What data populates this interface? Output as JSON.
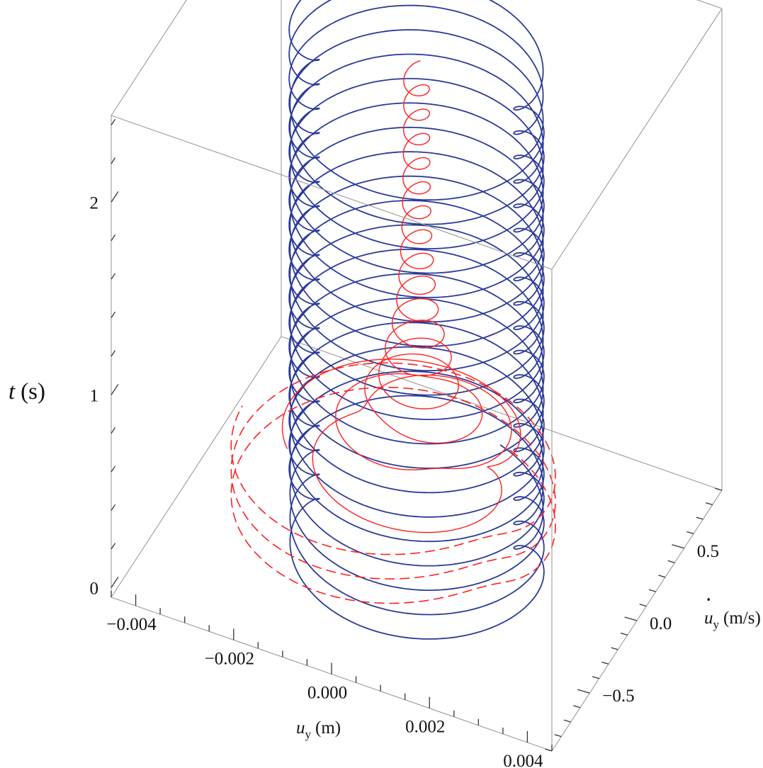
{
  "chart_data": {
    "type": "line",
    "projection": "3d",
    "title": "",
    "axes": {
      "x": {
        "label_main": "u",
        "label_sub": "y",
        "label_unit": "(m)",
        "range": [
          -0.0045,
          0.0045
        ],
        "ticks": [
          -0.004,
          -0.002,
          0.0,
          0.002,
          0.004
        ],
        "tick_labels": [
          "−0.004",
          "−0.002",
          "0.000",
          "0.002",
          "0.004"
        ]
      },
      "y": {
        "label_main": "u",
        "label_sub": "y",
        "label_dot": "˙",
        "label_unit": "(m/s)",
        "range": [
          -0.9,
          0.9
        ],
        "ticks": [
          -0.5,
          0.0,
          0.5
        ],
        "tick_labels": [
          "−0.5",
          "0.0",
          "0.5"
        ]
      },
      "z": {
        "label_main": "t",
        "label_unit": "(s)",
        "range": [
          -0.05,
          2.45
        ],
        "ticks": [
          0,
          1,
          2
        ],
        "tick_labels": [
          "0",
          "1",
          "2"
        ]
      }
    },
    "box": true,
    "grid": false,
    "series": [
      {
        "style": "solid",
        "color": "#2b3a99",
        "description_points": "phase trajectory, amplitude ~0.0034 m / ~0.7 m/s, nearly constant in time",
        "amplitude_u": 0.0034,
        "amplitude_v": 0.7,
        "t_range": [
          0.0,
          2.4
        ]
      },
      {
        "style": "solid",
        "color": "#ff2020",
        "amplitude_u_start": 0.0032,
        "amplitude_u_end": 0.00022,
        "amplitude_v_start": 0.66,
        "amplitude_v_end": 0.07,
        "t_range": [
          0.35,
          2.4
        ]
      },
      {
        "style": "dashed",
        "color": "#ff2020",
        "amplitude_u": 0.0036,
        "amplitude_v": 0.76,
        "t_range": [
          0.0,
          0.35
        ]
      }
    ]
  }
}
